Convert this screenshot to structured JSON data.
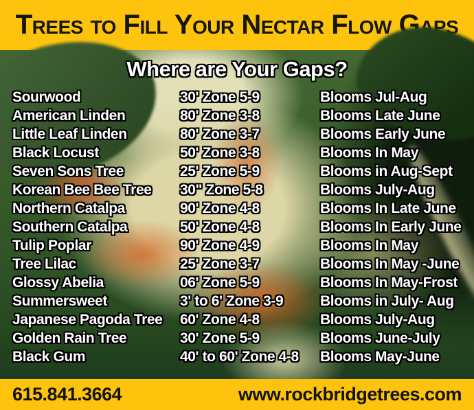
{
  "header": {
    "title": "Trees to Fill Your Nectar Flow Gaps"
  },
  "photo": {
    "description": "close-up of tulip poplar flower with green leaves"
  },
  "main": {
    "heading": "Where are Your Gaps?"
  },
  "table": {
    "rows": [
      {
        "name": "Sourwood",
        "size": "30' Zone 5-9",
        "blooms": "Blooms Jul-Aug"
      },
      {
        "name": "American Linden",
        "size": "80' Zone 3-8",
        "blooms": "Blooms Late June"
      },
      {
        "name": "Little Leaf Linden",
        "size": "80' Zone 3-7",
        "blooms": "Blooms Early June"
      },
      {
        "name": "Black Locust",
        "size": "50' Zone 3-8",
        "blooms": "Blooms In May"
      },
      {
        "name": "Seven Sons Tree",
        "size": "25' Zone 5-9",
        "blooms": "Blooms in Aug-Sept"
      },
      {
        "name": "Korean Bee Bee Tree",
        "size": "30\" Zone 5-8",
        "blooms": "Blooms July-Aug"
      },
      {
        "name": "Northern Catalpa",
        "size": "90' Zone 4-8",
        "blooms": "Blooms In Late June"
      },
      {
        "name": "Southern Catalpa",
        "size": "50' Zone 4-8",
        "blooms": "Blooms In Early June"
      },
      {
        "name": "Tulip Poplar",
        "size": "90' Zone 4-9",
        "blooms": "Blooms In May"
      },
      {
        "name": "Tree Lilac",
        "size": "25' Zone 3-7",
        "blooms": "Blooms In May -June"
      },
      {
        "name": "Glossy Abelia",
        "size": "06' Zone 5-9",
        "blooms": "Blooms In May-Frost"
      },
      {
        "name": "Summersweet",
        "size": "3' to 6' Zone 3-9",
        "blooms": "Blooms in July- Aug"
      },
      {
        "name": "Japanese Pagoda Tree",
        "size": "60' Zone 4-8",
        "blooms": "Blooms July-Aug"
      },
      {
        "name": "Golden Rain Tree",
        "size": "30' Zone 5-9",
        "blooms": "Blooms June-July"
      },
      {
        "name": "Black Gum",
        "size": "40' to 60' Zone 4-8",
        "blooms": "Blooms May-June"
      }
    ]
  },
  "footer": {
    "phone": "615.841.3664",
    "website": "www.rockbridgetrees.com"
  },
  "colors": {
    "gold": "#FEC40D",
    "title_text": "#171706",
    "row_text": "#FFFFFF",
    "row_outline": "#000000"
  }
}
